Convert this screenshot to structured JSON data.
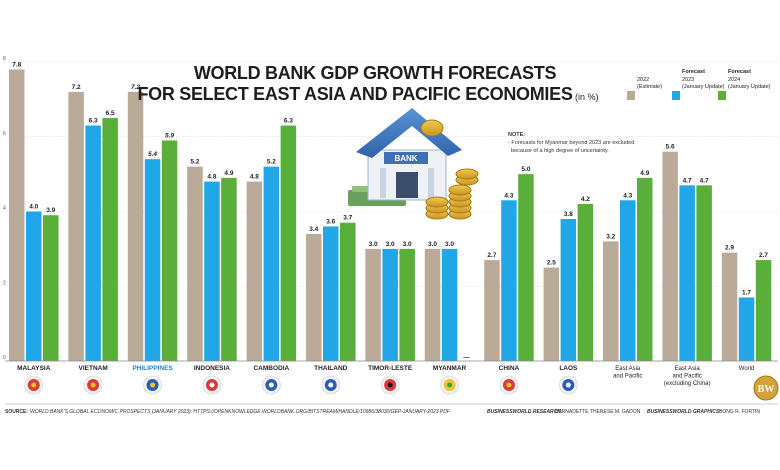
{
  "page": {
    "title_line1": "WORLD BANK GDP GROWTH FORECASTS",
    "title_line2": "FOR SELECT EAST ASIA AND PACIFIC ECONOMIES",
    "title_unit": "(in %)",
    "note_heading": "NOTE:",
    "note_line1": "- Forecasts for Myanmar beyond 2023 are excluded",
    "note_line2": "  because of a high degree of uncertainty.",
    "bank_sign": "BANK",
    "source_label": "SOURCE:",
    "source_text": "WORLD BANK'S GLOBAL ECONOMIC PROSPECTS (JANUARY 2023): HTTPS://OPENKNOWLEDGE.WORLDBANK.ORG/BITSTREAM/HANDLE/10986/38030/GEP-JANUARY-2023.PDF",
    "research_label": "BUSINESSWORLD RESEARCH:",
    "research_name": "BERNADETTE THERESE M. GADON",
    "graphics_label": "BUSINESSWORLD GRAPHICS:",
    "graphics_name": "BONG R. FORTIN",
    "logo_text": "BW",
    "colors": {
      "estimate_2022": "#b9ab97",
      "forecast_2023": "#21a7e8",
      "forecast_2024": "#5aae3a",
      "philippines_label": "#1b86c9",
      "title": "#1e1e1e",
      "grid": "#d9d9d9"
    }
  },
  "chart_data": {
    "type": "bar",
    "ylim": [
      0,
      8
    ],
    "yticks": [
      0,
      2,
      4,
      6,
      8
    ],
    "grid": true,
    "legend_position": "top-right",
    "legend": [
      {
        "line1": "",
        "line2": "2022",
        "line3": "(Estimate)"
      },
      {
        "line1": "Forecast",
        "line2": "2023",
        "line3": "(January Update)"
      },
      {
        "line1": "Forecast",
        "line2": "2024",
        "line3": "(January Update)"
      }
    ],
    "categories": [
      [
        "MALAYSIA"
      ],
      [
        "VIETNAM"
      ],
      [
        "PHILIPPINES"
      ],
      [
        "INDONESIA"
      ],
      [
        "CAMBODIA"
      ],
      [
        "THAILAND"
      ],
      [
        "TIMOR-LESTE"
      ],
      [
        "MYANMAR"
      ],
      [
        "CHINA"
      ],
      [
        "LAOS"
      ],
      [
        "East Asia",
        "and Pacific"
      ],
      [
        "East Asia",
        "and Pacific",
        "(excluding China)"
      ],
      [
        "World"
      ]
    ],
    "series": [
      {
        "name": "2022",
        "values": [
          7.8,
          7.2,
          7.2,
          5.2,
          4.8,
          3.4,
          3.0,
          3.0,
          2.7,
          2.5,
          3.2,
          5.6,
          2.9
        ],
        "labels": [
          "7.8",
          "7.2",
          "7.2",
          "5.2",
          "4.8",
          "3.4",
          "3.0",
          "3.0",
          "2.7",
          "2.5",
          "3.2",
          "5.6",
          "2.9"
        ]
      },
      {
        "name": "2023",
        "values": [
          4.0,
          6.3,
          5.4,
          4.8,
          5.2,
          3.6,
          3.0,
          3.0,
          4.3,
          3.8,
          4.3,
          4.7,
          1.7
        ],
        "labels": [
          "4.0",
          "6.3",
          "5.4",
          "4.8",
          "5.2",
          "3.6",
          "3.0",
          "3.0",
          "4.3",
          "3.8",
          "4.3",
          "4.7",
          "1.7"
        ]
      },
      {
        "name": "2024",
        "values": [
          3.9,
          6.5,
          5.9,
          4.9,
          6.3,
          3.7,
          3.0,
          null,
          5.0,
          4.2,
          4.9,
          4.7,
          2.7
        ],
        "labels": [
          "3.9",
          "6.5",
          "5.9",
          "4.9",
          "6.3",
          "3.7",
          "3.0",
          "—",
          "5.0",
          "4.2",
          "4.9",
          "4.7",
          "2.7"
        ]
      }
    ]
  }
}
